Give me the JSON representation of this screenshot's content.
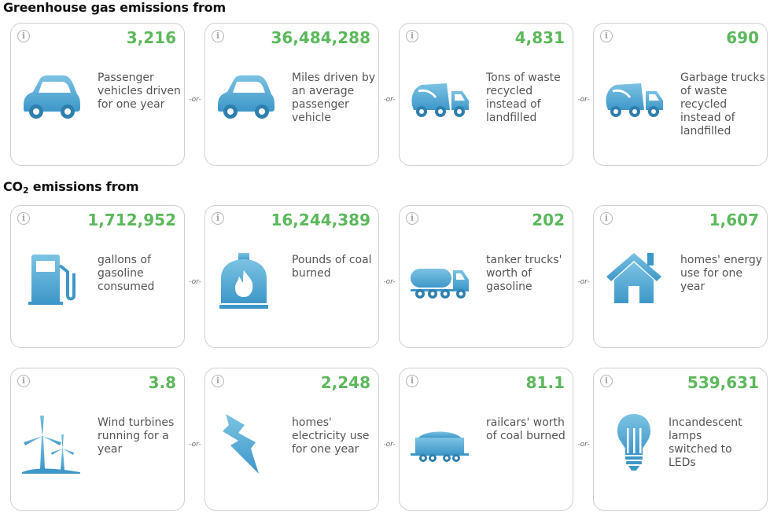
{
  "sections": {
    "greenhouse_title": "Greenhouse gas emissions from",
    "co2_title_prefix": "CO",
    "co2_title_sub": "2",
    "co2_title_suffix": " emissions from"
  },
  "separator": "-or-",
  "info_glyph": "i",
  "cards": [
    {
      "value": "3,216",
      "label": "Passenger vehicles driven for one year",
      "icon": "car-icon"
    },
    {
      "value": "36,484,288",
      "label": "Miles driven by an average passenger vehicle",
      "icon": "car-icon"
    },
    {
      "value": "4,831",
      "label": "Tons of waste recycled instead of landfilled",
      "icon": "garbage-truck-icon"
    },
    {
      "value": "690",
      "label": "Garbage trucks of waste recycled instead of landfilled",
      "icon": "garbage-truck-icon"
    },
    {
      "value": "1,712,952",
      "label": "gallons of gasoline consumed",
      "icon": "gas-pump-icon"
    },
    {
      "value": "16,244,389",
      "label": "Pounds of coal burned",
      "icon": "coal-furnace-icon"
    },
    {
      "value": "202",
      "label": "tanker trucks' worth of gasoline",
      "icon": "tanker-truck-icon"
    },
    {
      "value": "1,607",
      "label": "homes' energy use for one year",
      "icon": "house-icon"
    },
    {
      "value": "3.8",
      "label": "Wind turbines running for a year",
      "icon": "wind-turbine-icon"
    },
    {
      "value": "2,248",
      "label": "homes' electricity use for one year",
      "icon": "lightning-bolt-icon"
    },
    {
      "value": "81.1",
      "label": "railcars' worth of coal burned",
      "icon": "railcar-icon"
    },
    {
      "value": "539,631",
      "label": "Incandescent lamps switched to LEDs",
      "icon": "light-bulb-icon"
    }
  ],
  "colors": {
    "value_green": "#5cb85c",
    "icon_blue_light": "#7cc3e3",
    "icon_blue_dark": "#3d97c9"
  }
}
